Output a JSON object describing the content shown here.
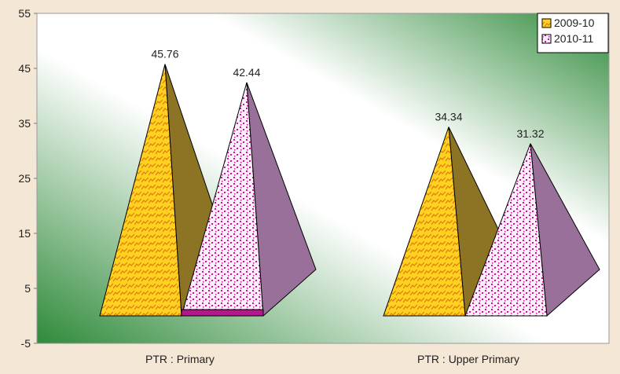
{
  "chart_data": {
    "type": "bar",
    "title": "",
    "xlabel": "",
    "ylabel": "",
    "ylim": [
      -5,
      55
    ],
    "yticks": [
      "55",
      "45",
      "35",
      "25",
      "15",
      "5",
      "-5"
    ],
    "categories": [
      "PTR : Primary",
      "PTR : Upper Primary"
    ],
    "series": [
      {
        "name": "2009-10",
        "values": [
          45.76,
          34.34
        ],
        "labels": [
          "45.76",
          "34.34"
        ],
        "color": "#ffd21f",
        "shade": "#8c7424"
      },
      {
        "name": "2010-11",
        "values": [
          42.44,
          31.32
        ],
        "labels": [
          "42.44",
          "31.32"
        ],
        "color": "#f7e3f3",
        "shade": "#98709a"
      }
    ],
    "legend_position": "top-right",
    "grid": false,
    "plot_background": [
      "#2f8a3a",
      "#ffffff"
    ]
  }
}
